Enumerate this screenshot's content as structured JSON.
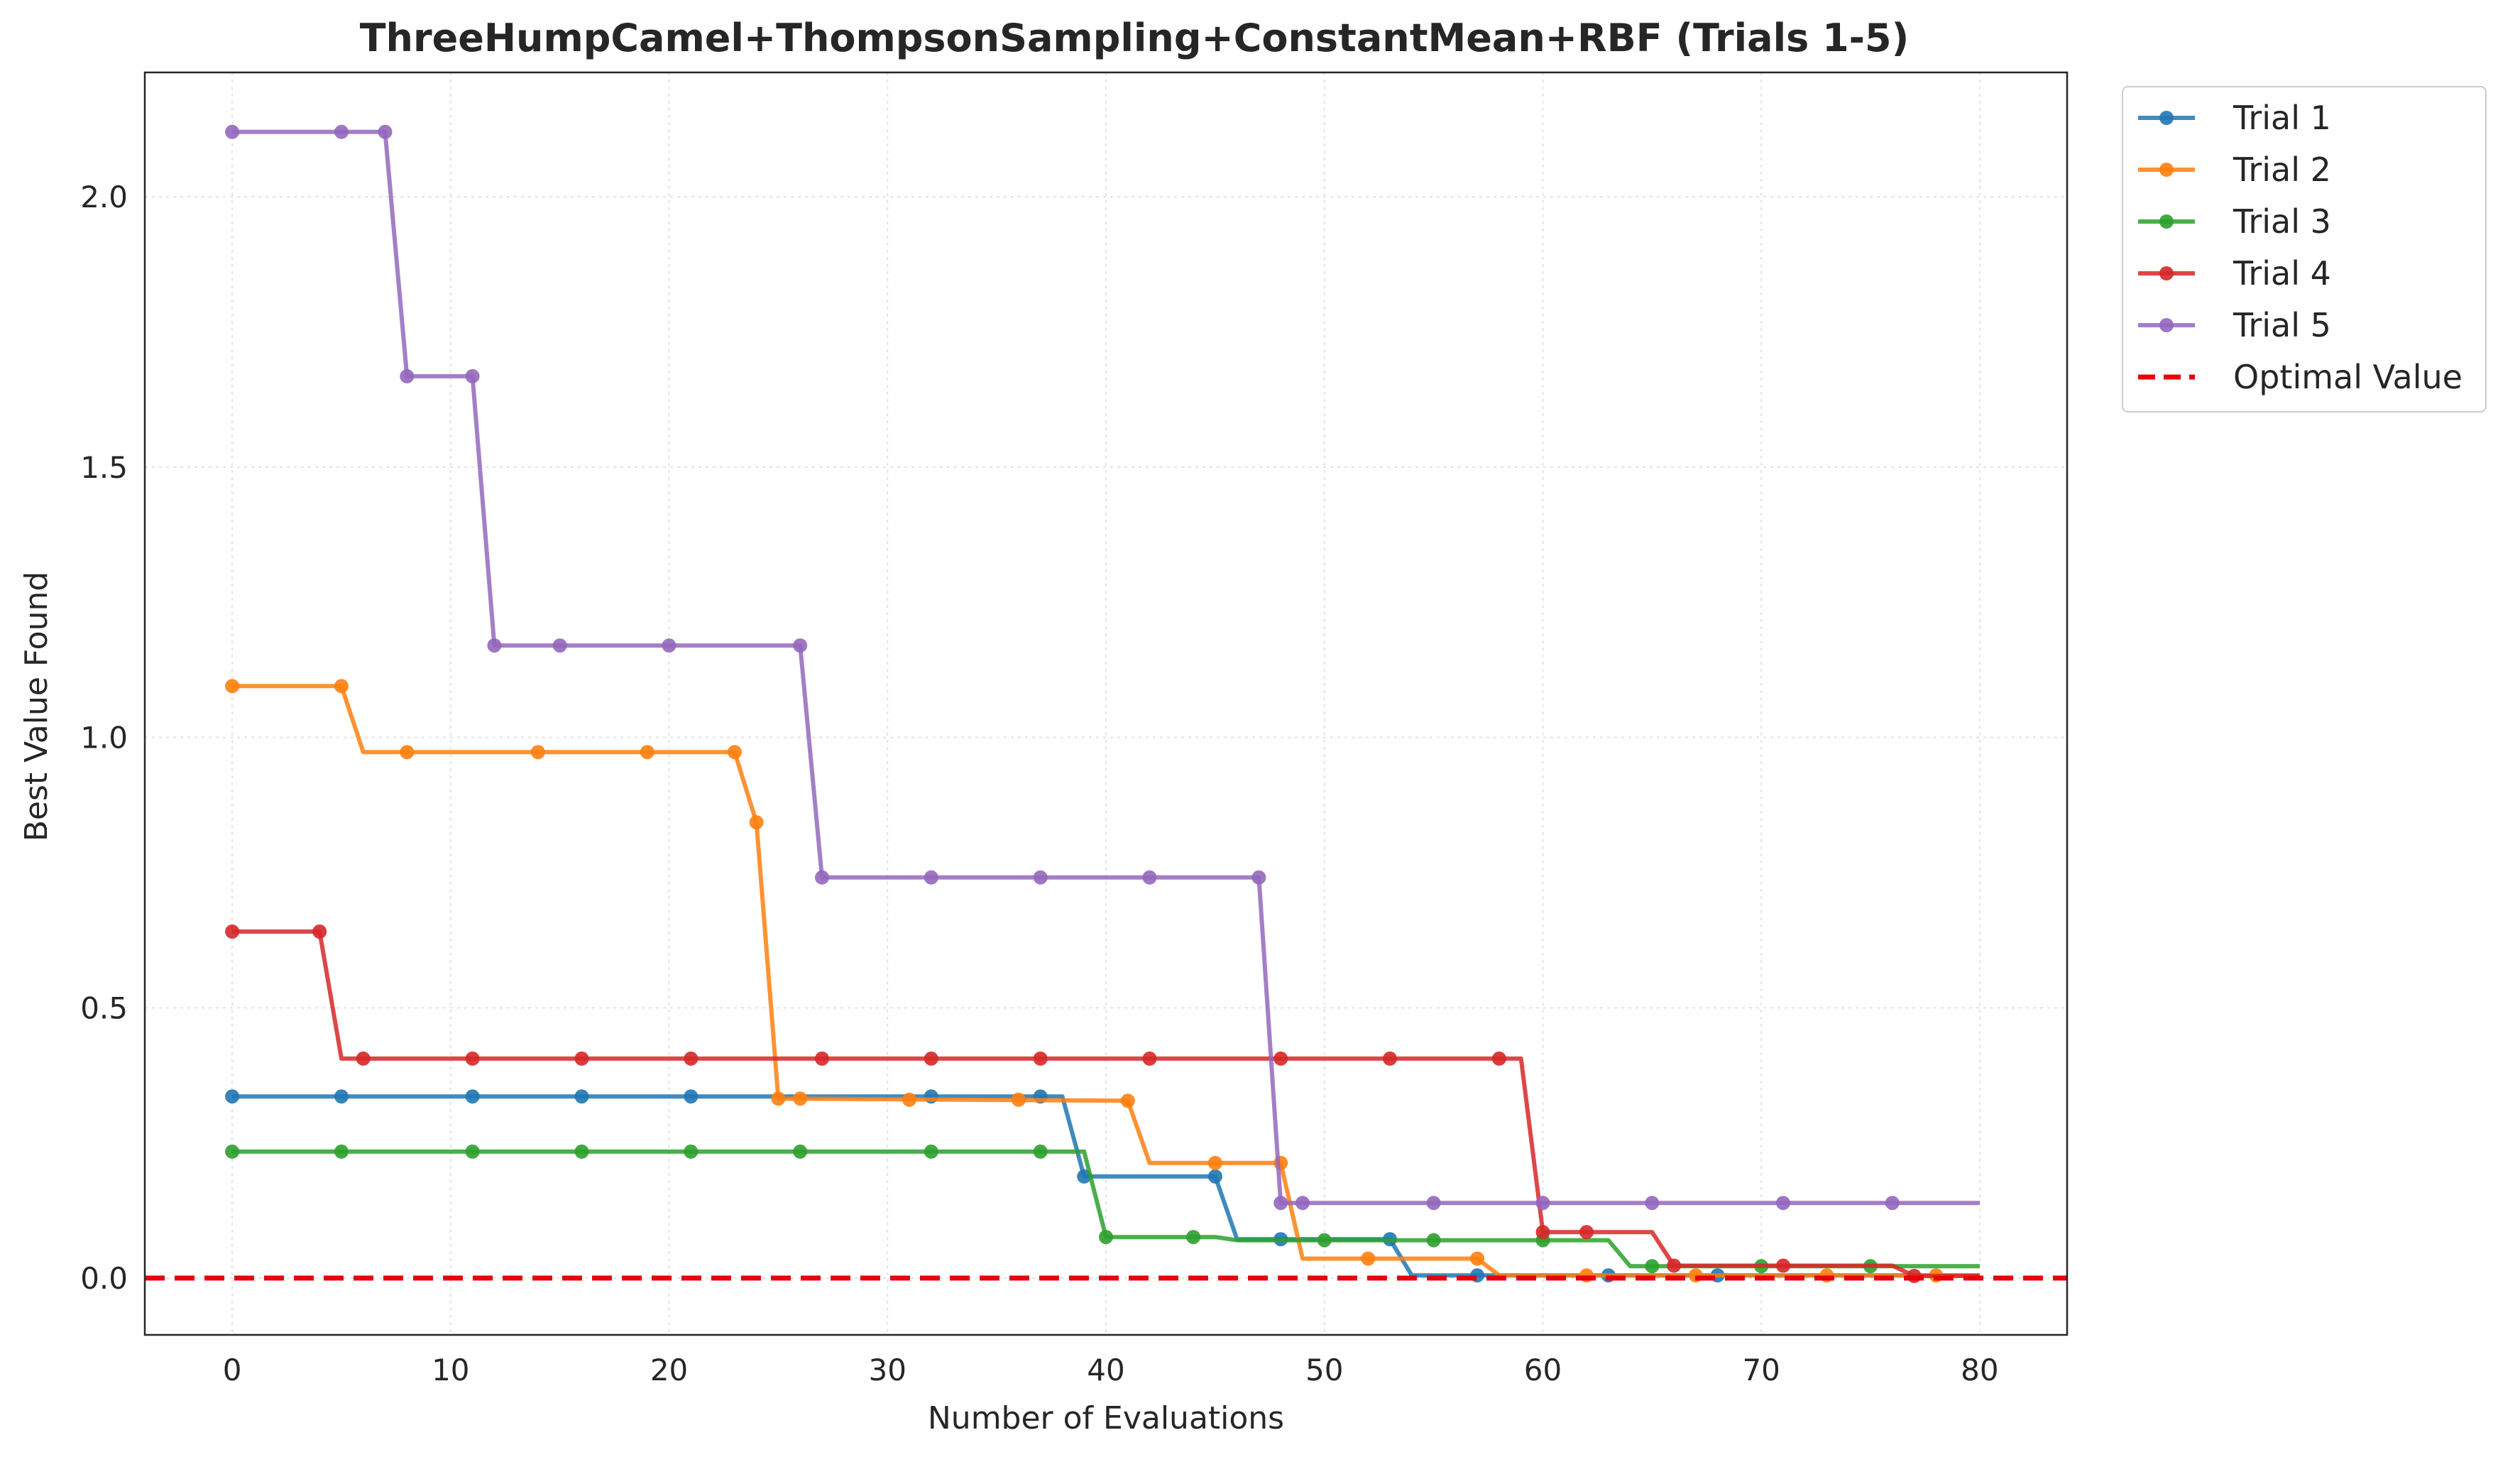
{
  "chart_data": {
    "type": "line",
    "title": "ThreeHumpCamel+ThompsonSampling+ConstantMean+RBF (Trials 1-5)",
    "xlabel": "Number of Evaluations",
    "ylabel": "Best Value Found",
    "xlim": [
      -4,
      84
    ],
    "ylim": [
      -0.105,
      2.23
    ],
    "xticks": [
      0,
      10,
      20,
      30,
      40,
      50,
      60,
      70,
      80
    ],
    "xtick_labels": [
      "0",
      "10",
      "20",
      "30",
      "40",
      "50",
      "60",
      "70",
      "80"
    ],
    "yticks": [
      0.0,
      0.5,
      1.0,
      1.5,
      2.0
    ],
    "ytick_labels": [
      "0.0",
      "0.5",
      "1.0",
      "1.5",
      "2.0"
    ],
    "grid": true,
    "legend_position": "outside-top-right",
    "series": [
      {
        "name": "Trial 1",
        "color": "#1f77b4",
        "line": [
          [
            0,
            0.336
          ],
          [
            38,
            0.336
          ],
          [
            39,
            0.188
          ],
          [
            45,
            0.188
          ],
          [
            46,
            0.072
          ],
          [
            53,
            0.072
          ],
          [
            54,
            0.005
          ],
          [
            80,
            0.005
          ]
        ],
        "markers": [
          [
            0,
            0.336
          ],
          [
            5,
            0.336
          ],
          [
            11,
            0.336
          ],
          [
            16,
            0.336
          ],
          [
            21,
            0.336
          ],
          [
            32,
            0.336
          ],
          [
            37,
            0.336
          ],
          [
            39,
            0.188
          ],
          [
            45,
            0.188
          ],
          [
            48,
            0.072
          ],
          [
            53,
            0.072
          ],
          [
            57,
            0.005
          ],
          [
            63,
            0.005
          ],
          [
            68,
            0.005
          ]
        ]
      },
      {
        "name": "Trial 2",
        "color": "#ff7f0e",
        "line": [
          [
            0,
            1.095
          ],
          [
            5,
            1.095
          ],
          [
            6,
            0.973
          ],
          [
            23,
            0.973
          ],
          [
            24,
            0.843
          ],
          [
            25,
            0.332
          ],
          [
            41,
            0.328
          ],
          [
            42,
            0.213
          ],
          [
            48,
            0.213
          ],
          [
            49,
            0.036
          ],
          [
            57,
            0.036
          ],
          [
            58,
            0.005
          ],
          [
            80,
            0.005
          ]
        ],
        "markers": [
          [
            0,
            1.095
          ],
          [
            5,
            1.095
          ],
          [
            8,
            0.973
          ],
          [
            14,
            0.973
          ],
          [
            19,
            0.973
          ],
          [
            23,
            0.973
          ],
          [
            24,
            0.843
          ],
          [
            25,
            0.332
          ],
          [
            26,
            0.332
          ],
          [
            31,
            0.33
          ],
          [
            36,
            0.33
          ],
          [
            41,
            0.328
          ],
          [
            45,
            0.213
          ],
          [
            48,
            0.213
          ],
          [
            52,
            0.036
          ],
          [
            57,
            0.036
          ],
          [
            62,
            0.005
          ],
          [
            67,
            0.005
          ],
          [
            73,
            0.005
          ],
          [
            78,
            0.005
          ]
        ]
      },
      {
        "name": "Trial 3",
        "color": "#2ca02c",
        "line": [
          [
            0,
            0.234
          ],
          [
            39,
            0.234
          ],
          [
            40,
            0.076
          ],
          [
            45,
            0.076
          ],
          [
            46,
            0.07
          ],
          [
            63,
            0.07
          ],
          [
            64,
            0.022
          ],
          [
            80,
            0.022
          ]
        ],
        "markers": [
          [
            0,
            0.234
          ],
          [
            5,
            0.234
          ],
          [
            11,
            0.234
          ],
          [
            16,
            0.234
          ],
          [
            21,
            0.234
          ],
          [
            26,
            0.234
          ],
          [
            32,
            0.234
          ],
          [
            37,
            0.234
          ],
          [
            40,
            0.076
          ],
          [
            44,
            0.076
          ],
          [
            50,
            0.07
          ],
          [
            55,
            0.07
          ],
          [
            60,
            0.07
          ],
          [
            65,
            0.022
          ],
          [
            70,
            0.022
          ],
          [
            75,
            0.022
          ]
        ]
      },
      {
        "name": "Trial 4",
        "color": "#d62728",
        "line": [
          [
            0,
            0.641
          ],
          [
            4,
            0.641
          ],
          [
            5,
            0.406
          ],
          [
            59,
            0.406
          ],
          [
            60,
            0.085
          ],
          [
            65,
            0.085
          ],
          [
            66,
            0.023
          ],
          [
            76,
            0.023
          ],
          [
            77,
            0.004
          ],
          [
            80,
            0.004
          ]
        ],
        "markers": [
          [
            0,
            0.641
          ],
          [
            4,
            0.641
          ],
          [
            6,
            0.406
          ],
          [
            11,
            0.406
          ],
          [
            16,
            0.406
          ],
          [
            21,
            0.406
          ],
          [
            27,
            0.406
          ],
          [
            32,
            0.406
          ],
          [
            37,
            0.406
          ],
          [
            42,
            0.406
          ],
          [
            48,
            0.406
          ],
          [
            53,
            0.406
          ],
          [
            58,
            0.406
          ],
          [
            60,
            0.085
          ],
          [
            62,
            0.085
          ],
          [
            66,
            0.023
          ],
          [
            71,
            0.023
          ],
          [
            77,
            0.004
          ]
        ]
      },
      {
        "name": "Trial 5",
        "color": "#9467bd",
        "line": [
          [
            0,
            2.12
          ],
          [
            7,
            2.12
          ],
          [
            8,
            1.668
          ],
          [
            11,
            1.668
          ],
          [
            12,
            1.17
          ],
          [
            26,
            1.17
          ],
          [
            27,
            0.741
          ],
          [
            47,
            0.741
          ],
          [
            48,
            0.139
          ],
          [
            80,
            0.139
          ]
        ],
        "markers": [
          [
            0,
            2.12
          ],
          [
            5,
            2.12
          ],
          [
            7,
            2.12
          ],
          [
            8,
            1.668
          ],
          [
            11,
            1.668
          ],
          [
            12,
            1.17
          ],
          [
            15,
            1.17
          ],
          [
            20,
            1.17
          ],
          [
            26,
            1.17
          ],
          [
            27,
            0.741
          ],
          [
            32,
            0.741
          ],
          [
            37,
            0.741
          ],
          [
            42,
            0.741
          ],
          [
            47,
            0.741
          ],
          [
            48,
            0.139
          ],
          [
            49,
            0.139
          ],
          [
            55,
            0.139
          ],
          [
            60,
            0.139
          ],
          [
            65,
            0.139
          ],
          [
            71,
            0.139
          ],
          [
            76,
            0.139
          ]
        ]
      }
    ],
    "reference_line": {
      "name": "Optimal Value",
      "y": 0.0,
      "color": "#e8000b",
      "style": "dashed"
    }
  }
}
